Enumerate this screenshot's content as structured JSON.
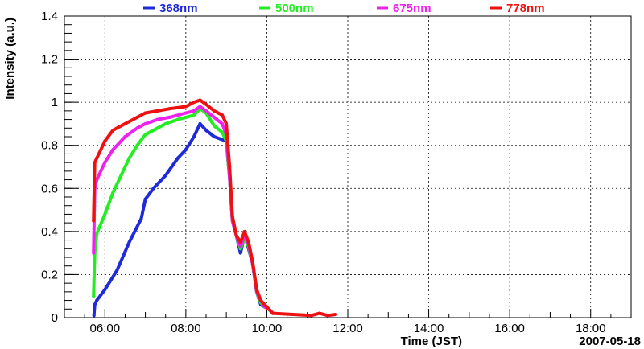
{
  "chart_data": {
    "type": "scatter",
    "title": "",
    "xlabel": "Time (JST)",
    "ylabel": "Intensity (a.u.)",
    "date_label": "2007-05-18",
    "xlim": [
      5.0,
      19.0
    ],
    "ylim": [
      0,
      1.4
    ],
    "grid": true,
    "x_ticks": [
      {
        "value": 6,
        "label": "06:00"
      },
      {
        "value": 8,
        "label": "08:00"
      },
      {
        "value": 10,
        "label": "10:00"
      },
      {
        "value": 12,
        "label": "12:00"
      },
      {
        "value": 14,
        "label": "14:00"
      },
      {
        "value": 16,
        "label": "16:00"
      },
      {
        "value": 18,
        "label": "18:00"
      }
    ],
    "y_ticks": [
      {
        "value": 0,
        "label": "0"
      },
      {
        "value": 0.2,
        "label": "0.2"
      },
      {
        "value": 0.4,
        "label": "0.4"
      },
      {
        "value": 0.6,
        "label": "0.6"
      },
      {
        "value": 0.8,
        "label": "0.8"
      },
      {
        "value": 1.0,
        "label": "1"
      },
      {
        "value": 1.2,
        "label": "1.2"
      },
      {
        "value": 1.4,
        "label": "1.4"
      }
    ],
    "legend_position": "top",
    "series": [
      {
        "name": "368nm",
        "color": "#1f2bd8",
        "points": [
          [
            5.73,
            0.01
          ],
          [
            5.75,
            0.06
          ],
          [
            5.8,
            0.08
          ],
          [
            6.0,
            0.13
          ],
          [
            6.3,
            0.22
          ],
          [
            6.6,
            0.35
          ],
          [
            6.9,
            0.46
          ],
          [
            7.0,
            0.55
          ],
          [
            7.2,
            0.6
          ],
          [
            7.5,
            0.66
          ],
          [
            7.8,
            0.74
          ],
          [
            8.0,
            0.78
          ],
          [
            8.2,
            0.84
          ],
          [
            8.35,
            0.9
          ],
          [
            8.5,
            0.87
          ],
          [
            8.7,
            0.84
          ],
          [
            8.85,
            0.83
          ],
          [
            9.0,
            0.82
          ],
          [
            9.08,
            0.65
          ],
          [
            9.15,
            0.45
          ],
          [
            9.25,
            0.38
          ],
          [
            9.35,
            0.3
          ],
          [
            9.45,
            0.38
          ],
          [
            9.55,
            0.32
          ],
          [
            9.65,
            0.25
          ],
          [
            9.75,
            0.12
          ],
          [
            9.85,
            0.06
          ],
          [
            9.95,
            0.05
          ],
          [
            10.05,
            0.04
          ],
          [
            10.15,
            0.02
          ]
        ]
      },
      {
        "name": "500nm",
        "color": "#22ee22",
        "points": [
          [
            5.72,
            0.1
          ],
          [
            5.75,
            0.3
          ],
          [
            5.8,
            0.39
          ],
          [
            6.0,
            0.48
          ],
          [
            6.2,
            0.58
          ],
          [
            6.4,
            0.66
          ],
          [
            6.6,
            0.74
          ],
          [
            6.8,
            0.8
          ],
          [
            7.0,
            0.85
          ],
          [
            7.3,
            0.88
          ],
          [
            7.5,
            0.9
          ],
          [
            7.8,
            0.92
          ],
          [
            8.0,
            0.93
          ],
          [
            8.2,
            0.94
          ],
          [
            8.35,
            0.97
          ],
          [
            8.5,
            0.95
          ],
          [
            8.7,
            0.89
          ],
          [
            8.9,
            0.86
          ],
          [
            9.0,
            0.82
          ],
          [
            9.08,
            0.65
          ],
          [
            9.15,
            0.45
          ],
          [
            9.25,
            0.38
          ],
          [
            9.35,
            0.32
          ],
          [
            9.45,
            0.37
          ],
          [
            9.55,
            0.33
          ],
          [
            9.65,
            0.25
          ],
          [
            9.75,
            0.12
          ],
          [
            9.85,
            0.07
          ],
          [
            9.95,
            0.05
          ],
          [
            10.05,
            0.04
          ],
          [
            10.15,
            0.02
          ]
        ]
      },
      {
        "name": "675nm",
        "color": "#ee22ee",
        "points": [
          [
            5.72,
            0.3
          ],
          [
            5.75,
            0.6
          ],
          [
            5.8,
            0.64
          ],
          [
            6.0,
            0.72
          ],
          [
            6.2,
            0.78
          ],
          [
            6.5,
            0.84
          ],
          [
            6.8,
            0.88
          ],
          [
            7.0,
            0.9
          ],
          [
            7.3,
            0.92
          ],
          [
            7.6,
            0.93
          ],
          [
            8.0,
            0.95
          ],
          [
            8.2,
            0.96
          ],
          [
            8.35,
            0.98
          ],
          [
            8.5,
            0.96
          ],
          [
            8.7,
            0.93
          ],
          [
            8.9,
            0.9
          ],
          [
            9.0,
            0.85
          ],
          [
            9.08,
            0.65
          ],
          [
            9.15,
            0.45
          ],
          [
            9.25,
            0.38
          ],
          [
            9.35,
            0.33
          ],
          [
            9.45,
            0.38
          ],
          [
            9.55,
            0.34
          ],
          [
            9.65,
            0.25
          ],
          [
            9.75,
            0.12
          ],
          [
            9.85,
            0.08
          ],
          [
            9.95,
            0.05
          ],
          [
            10.05,
            0.04
          ],
          [
            10.15,
            0.02
          ]
        ]
      },
      {
        "name": "778nm",
        "color": "#ee1111",
        "points": [
          [
            5.72,
            0.45
          ],
          [
            5.75,
            0.72
          ],
          [
            5.8,
            0.74
          ],
          [
            6.0,
            0.82
          ],
          [
            6.2,
            0.87
          ],
          [
            6.5,
            0.9
          ],
          [
            6.8,
            0.93
          ],
          [
            7.0,
            0.95
          ],
          [
            7.3,
            0.96
          ],
          [
            7.6,
            0.97
          ],
          [
            8.0,
            0.98
          ],
          [
            8.2,
            1.0
          ],
          [
            8.35,
            1.01
          ],
          [
            8.5,
            0.99
          ],
          [
            8.7,
            0.96
          ],
          [
            8.9,
            0.94
          ],
          [
            9.0,
            0.9
          ],
          [
            9.08,
            0.7
          ],
          [
            9.15,
            0.47
          ],
          [
            9.25,
            0.38
          ],
          [
            9.35,
            0.35
          ],
          [
            9.45,
            0.4
          ],
          [
            9.55,
            0.35
          ],
          [
            9.65,
            0.26
          ],
          [
            9.75,
            0.13
          ],
          [
            9.85,
            0.08
          ],
          [
            9.95,
            0.06
          ],
          [
            10.05,
            0.04
          ],
          [
            10.15,
            0.02
          ],
          [
            11.1,
            0.01
          ],
          [
            11.3,
            0.02
          ],
          [
            11.5,
            0.01
          ],
          [
            11.7,
            0.015
          ]
        ]
      }
    ]
  }
}
